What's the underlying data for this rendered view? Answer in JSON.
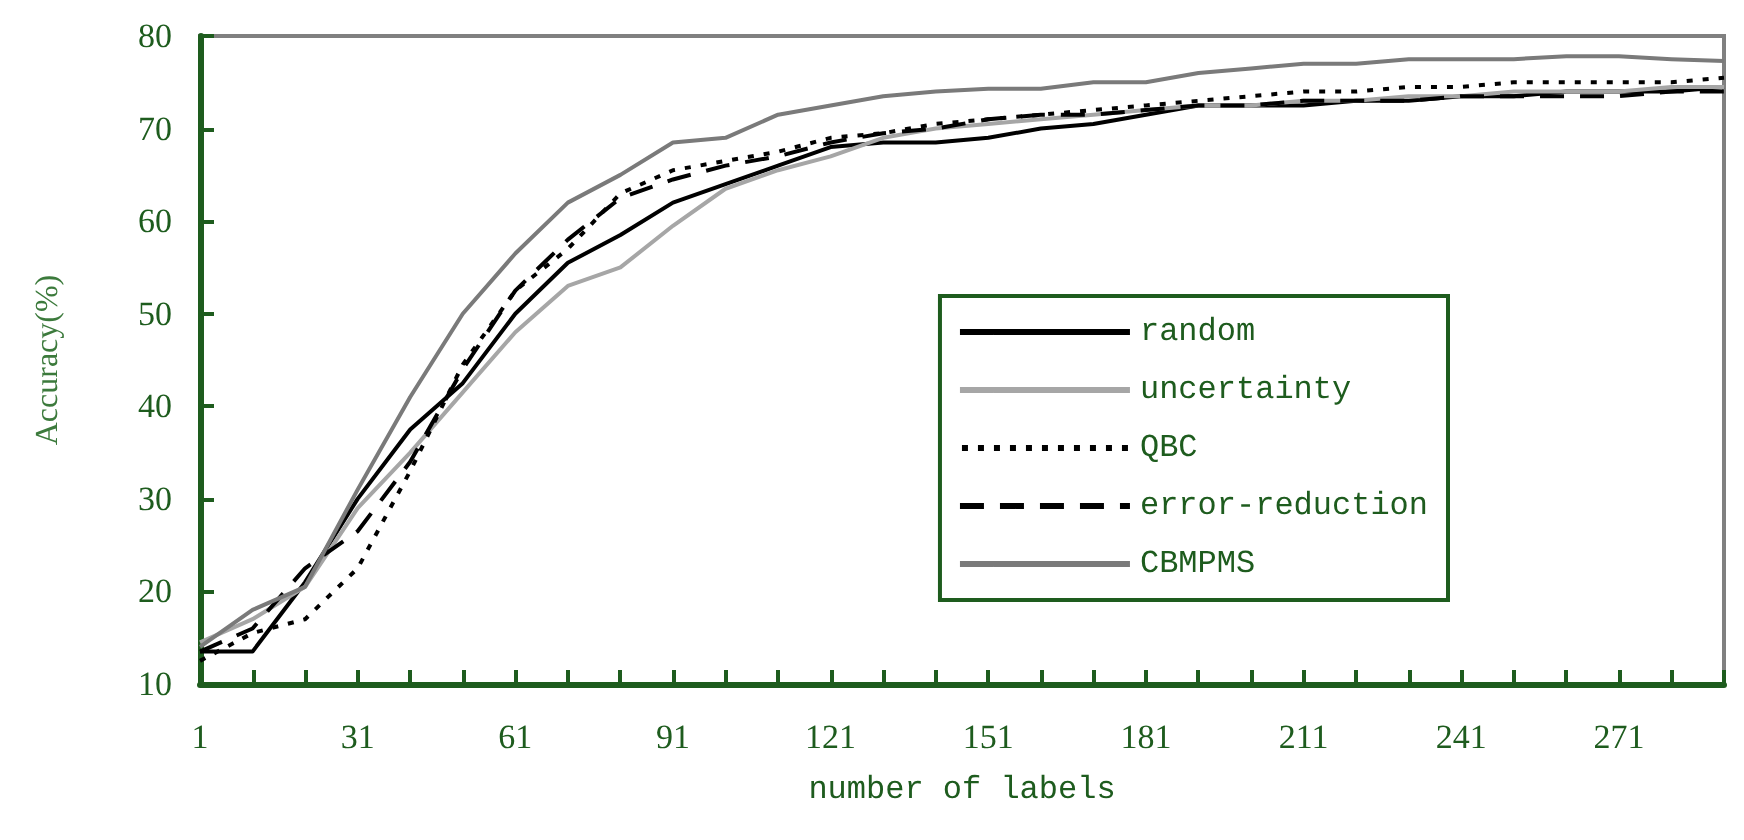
{
  "chart_data": {
    "type": "line",
    "xlabel": "number of labels",
    "ylabel": "Accuracy(%)",
    "x": [
      1,
      11,
      21,
      31,
      41,
      51,
      61,
      71,
      81,
      91,
      101,
      111,
      121,
      131,
      141,
      151,
      161,
      171,
      181,
      191,
      201,
      211,
      221,
      231,
      241,
      251,
      261,
      271,
      281,
      291
    ],
    "xlim": [
      1,
      291
    ],
    "xticks": [
      1,
      {
        "value": 11,
        "label": null
      },
      {
        "value": 21,
        "label": null
      },
      31,
      {
        "value": 41,
        "label": null
      },
      {
        "value": 51,
        "label": null
      },
      61,
      {
        "value": 71,
        "label": null
      },
      {
        "value": 81,
        "label": null
      },
      91,
      {
        "value": 101,
        "label": null
      },
      {
        "value": 111,
        "label": null
      },
      121,
      {
        "value": 131,
        "label": null
      },
      {
        "value": 141,
        "label": null
      },
      151,
      {
        "value": 161,
        "label": null
      },
      {
        "value": 171,
        "label": null
      },
      181,
      {
        "value": 191,
        "label": null
      },
      {
        "value": 201,
        "label": null
      },
      211,
      {
        "value": 221,
        "label": null
      },
      {
        "value": 231,
        "label": null
      },
      241,
      {
        "value": 251,
        "label": null
      },
      {
        "value": 261,
        "label": null
      },
      271,
      {
        "value": 281,
        "label": null
      },
      {
        "value": 291,
        "label": null
      }
    ],
    "ylim": [
      10,
      80
    ],
    "yticks": [
      10,
      20,
      30,
      40,
      50,
      60,
      70,
      80
    ],
    "grid": false,
    "legend": "right",
    "marker": "none",
    "series": [
      {
        "name": "random",
        "color": "#000000",
        "line_style": "solid",
        "values": [
          13.5,
          13.5,
          21,
          30,
          37.5,
          42.5,
          50,
          55.5,
          58.5,
          62,
          64,
          66,
          68,
          68.5,
          68.5,
          69,
          70,
          70.5,
          71.5,
          72.5,
          72.5,
          72.5,
          73,
          73,
          73.5,
          73.5,
          74,
          74,
          74,
          74.5
        ]
      },
      {
        "name": "uncertainty",
        "color": "#a6a6a6",
        "line_style": "solid",
        "values": [
          14.5,
          17,
          20.5,
          29,
          35,
          41.5,
          48,
          53,
          55,
          59.5,
          63.5,
          65.5,
          67,
          69,
          70,
          70.5,
          71,
          71.5,
          72,
          72.5,
          72.5,
          73,
          73,
          73.5,
          73.5,
          74,
          74,
          74,
          74.5,
          74.5
        ]
      },
      {
        "name": "QBC",
        "color": "#000000",
        "line_style": "dotted",
        "values": [
          12.5,
          15.5,
          17,
          22.5,
          33,
          44.5,
          52.5,
          57,
          63,
          65.5,
          66.5,
          67.5,
          69,
          69.5,
          70.5,
          71,
          71.5,
          72,
          72.5,
          73,
          73.5,
          74,
          74,
          74.5,
          74.5,
          75,
          75,
          75,
          75,
          75.5
        ]
      },
      {
        "name": "error-reduction",
        "color": "#000000",
        "line_style": "dashed",
        "values": [
          13.5,
          16,
          22.5,
          26.5,
          34,
          44,
          52.5,
          58,
          62.5,
          64.5,
          66,
          67,
          68.5,
          69.5,
          70,
          71,
          71.5,
          71.5,
          72,
          72.5,
          72.5,
          73,
          73,
          73,
          73.5,
          73.5,
          73.5,
          73.5,
          74,
          74
        ]
      },
      {
        "name": "CBMPMS",
        "color": "#7a7a7a",
        "line_style": "solid",
        "values": [
          14,
          18,
          20.5,
          31,
          41,
          50,
          56.5,
          62,
          65,
          68.5,
          69,
          71.5,
          72.5,
          73.5,
          74,
          74.3,
          74.3,
          75,
          75,
          76,
          76.5,
          77,
          77,
          77.5,
          77.5,
          77.5,
          77.8,
          77.8,
          77.5,
          77.3
        ]
      }
    ]
  }
}
